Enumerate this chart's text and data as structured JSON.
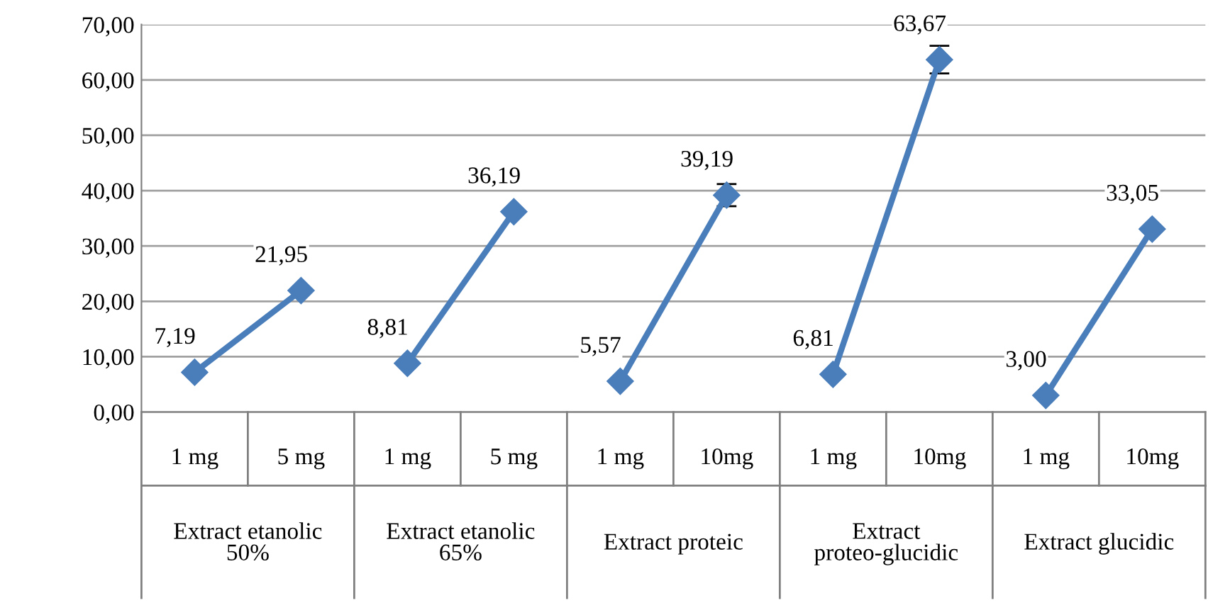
{
  "chart_data": {
    "type": "line",
    "categories": [
      "1 mg",
      "5 mg",
      "1 mg",
      "5 mg",
      "1 mg",
      "10mg",
      "1 mg",
      "10mg",
      "1 mg",
      "10mg"
    ],
    "series": [
      {
        "color": "#4a7ebb",
        "values": [
          7.19,
          21.95,
          null,
          null,
          null,
          null,
          null,
          null,
          null,
          null
        ],
        "value_labels": [
          "7,19",
          "21,95",
          null,
          null,
          null,
          null,
          null,
          null,
          null,
          null
        ],
        "errors": [
          null,
          null,
          null,
          null,
          null,
          null,
          null,
          null,
          null,
          null
        ]
      },
      {
        "color": "#4a7ebb",
        "values": [
          null,
          null,
          8.81,
          36.19,
          null,
          null,
          null,
          null,
          null,
          null
        ],
        "value_labels": [
          null,
          null,
          "8,81",
          "36,19",
          null,
          null,
          null,
          null,
          null,
          null
        ],
        "errors": [
          null,
          null,
          null,
          null,
          null,
          null,
          null,
          null,
          null,
          null
        ]
      },
      {
        "color": "#4a7ebb",
        "values": [
          null,
          null,
          null,
          null,
          5.57,
          39.19,
          null,
          null,
          null,
          null
        ],
        "value_labels": [
          null,
          null,
          null,
          null,
          "5,57",
          "39,19",
          null,
          null,
          null,
          null
        ],
        "errors": [
          null,
          null,
          null,
          null,
          null,
          2,
          null,
          null,
          null,
          null
        ]
      },
      {
        "color": "#4a7ebb",
        "values": [
          null,
          null,
          null,
          null,
          null,
          null,
          6.81,
          63.67,
          null,
          null
        ],
        "value_labels": [
          null,
          null,
          null,
          null,
          null,
          null,
          "6,81",
          "63,67",
          null,
          null
        ],
        "errors": [
          null,
          null,
          null,
          null,
          null,
          null,
          null,
          2.5,
          null,
          null
        ]
      },
      {
        "color": "#4a7ebb",
        "values": [
          null,
          null,
          null,
          null,
          null,
          null,
          null,
          null,
          3.0,
          33.05
        ],
        "value_labels": [
          null,
          null,
          null,
          null,
          null,
          null,
          null,
          null,
          "3,00",
          "33,05"
        ],
        "errors": [
          null,
          null,
          null,
          null,
          null,
          null,
          null,
          null,
          null,
          null
        ]
      }
    ],
    "annotations": [
      "Extract etanolic 50%",
      "Extract etanolic 65%",
      "Extract proteic",
      "Extract proteo-glucidic",
      "Extract glucidic"
    ],
    "ylim": [
      0,
      70
    ],
    "yticks": [
      {
        "value": 0,
        "label": "0,00"
      },
      {
        "value": 10,
        "label": "10,00"
      },
      {
        "value": 20,
        "label": "20,00"
      },
      {
        "value": 30,
        "label": "30,00"
      },
      {
        "value": 40,
        "label": "40,00"
      },
      {
        "value": 50,
        "label": "50,00"
      },
      {
        "value": 60,
        "label": "60,00"
      },
      {
        "value": 70,
        "label": "70,00"
      }
    ],
    "grid": "y",
    "marker": "diamond",
    "line_style": "solid",
    "legend": false
  }
}
